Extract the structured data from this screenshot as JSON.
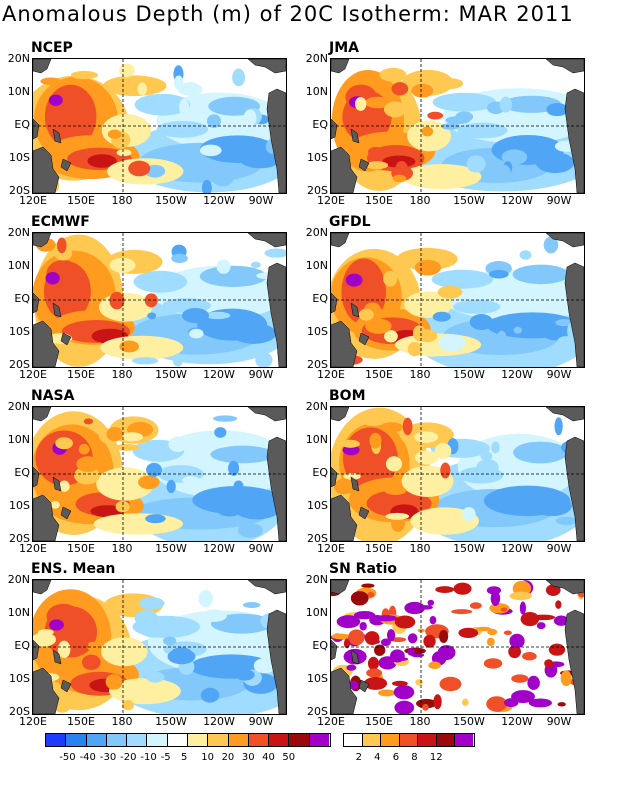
{
  "title": "Anomalous Depth (m) of 20C Isotherm: MAR 2011",
  "lat_labels": [
    "20N",
    "10N",
    "EQ",
    "10S",
    "20S"
  ],
  "lon_labels": [
    "120E",
    "150E",
    "180",
    "150W",
    "120W",
    "90W"
  ],
  "colors": {
    "neg50": "#1e3cff",
    "neg40": "#2882f0",
    "neg30": "#50a5f5",
    "neg20": "#82c8fa",
    "neg10": "#a0dcff",
    "neg5": "#d2f5ff",
    "zero": "#ffffff",
    "p5": "#ffefa0",
    "p10": "#ffc850",
    "p20": "#ff9b1e",
    "p30": "#f05028",
    "p40": "#c81414",
    "p50": "#9b0a0a",
    "p60": "#a000c8",
    "land": "#5a5a5a"
  },
  "chart_data": [
    {
      "type": "heatmap",
      "name": "NCEP",
      "pattern": "west-warm"
    },
    {
      "type": "heatmap",
      "name": "JMA",
      "pattern": "west-warm"
    },
    {
      "type": "heatmap",
      "name": "ECMWF",
      "pattern": "west-warm"
    },
    {
      "type": "heatmap",
      "name": "GFDL",
      "pattern": "west-warm"
    },
    {
      "type": "heatmap",
      "name": "NASA",
      "pattern": "west-warm"
    },
    {
      "type": "heatmap",
      "name": "BOM",
      "pattern": "west-warm"
    },
    {
      "type": "heatmap",
      "name": "ENS. Mean",
      "pattern": "west-warm"
    },
    {
      "type": "heatmap",
      "name": "SN Ratio",
      "pattern": "snr"
    }
  ],
  "colorbar_anom": {
    "colors": [
      "#1e3cff",
      "#2882f0",
      "#50a5f5",
      "#82c8fa",
      "#a0dcff",
      "#d2f5ff",
      "#ffffff",
      "#ffefa0",
      "#ffc850",
      "#ff9b1e",
      "#f05028",
      "#c81414",
      "#9b0a0a",
      "#a000c8"
    ],
    "labels": [
      "-50",
      "-40",
      "-30",
      "-20",
      "-10",
      "-5",
      "5",
      "10",
      "20",
      "30",
      "40",
      "50"
    ]
  },
  "colorbar_snr": {
    "colors": [
      "#ffffff",
      "#ffc850",
      "#ff9b1e",
      "#f05028",
      "#c81414",
      "#9b0a0a",
      "#a000c8"
    ],
    "labels": [
      "2",
      "4",
      "6",
      "8",
      "12"
    ]
  }
}
